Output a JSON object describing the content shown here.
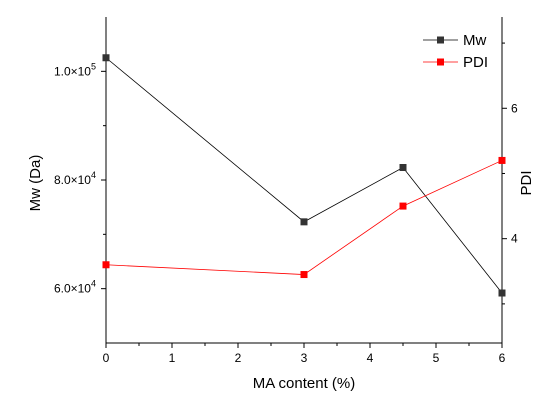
{
  "chart_data": {
    "type": "line",
    "title": "",
    "xlabel": "MA content (%)",
    "ylabel_left": "Mw (Da)",
    "ylabel_right": "PDI",
    "x": [
      0,
      3,
      4.5,
      6
    ],
    "x_ticks": [
      0,
      1,
      2,
      3,
      4,
      5,
      6
    ],
    "x_tick_labels": [
      "0",
      "1",
      "2",
      "3",
      "4",
      "5",
      "6"
    ],
    "xlim": [
      0,
      6
    ],
    "y_left_lim": [
      50000,
      110000
    ],
    "y_left_ticks": [
      60000,
      80000,
      100000
    ],
    "y_left_tick_mantissa": [
      "6.0×10",
      "8.0×10",
      "1.0×10"
    ],
    "y_left_tick_exponent": [
      "4",
      "4",
      "5"
    ],
    "y_right_lim": [
      2.4,
      7.4
    ],
    "y_right_ticks": [
      4,
      6
    ],
    "y_right_tick_labels": [
      "4",
      "6"
    ],
    "grid": false,
    "legend_position": "top-right",
    "series": [
      {
        "name": "Mw",
        "axis": "left",
        "color": "#000000",
        "marker_color": "#333333",
        "values": [
          102500,
          72300,
          82300,
          59200
        ]
      },
      {
        "name": "PDI",
        "axis": "right",
        "color": "#ff0000",
        "marker_color": "#ff0000",
        "values": [
          3.6,
          3.45,
          4.5,
          5.2
        ]
      }
    ]
  }
}
